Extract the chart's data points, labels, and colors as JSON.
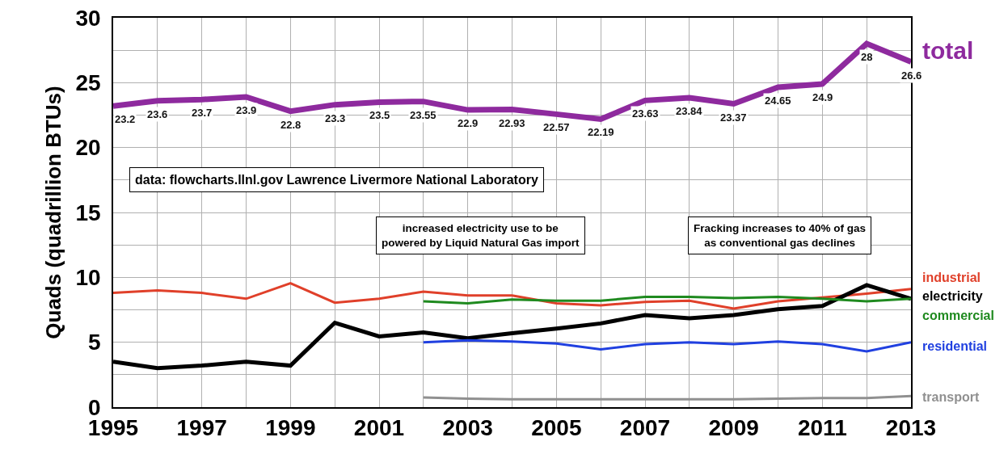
{
  "chart_data": {
    "type": "line",
    "ylabel": "Quads (quadrillion BTUs)",
    "x": [
      1995,
      1996,
      1997,
      1998,
      1999,
      2000,
      2001,
      2002,
      2003,
      2004,
      2005,
      2006,
      2007,
      2008,
      2009,
      2010,
      2011,
      2012,
      2013
    ],
    "series": [
      {
        "name": "total",
        "color": "#8e2a9e",
        "values": [
          23.2,
          23.6,
          23.7,
          23.9,
          22.8,
          23.3,
          23.5,
          23.55,
          22.9,
          22.93,
          22.57,
          22.19,
          23.63,
          23.84,
          23.37,
          24.65,
          24.9,
          28,
          26.6
        ],
        "value_labels": [
          "23.2",
          "23.6",
          "23.7",
          "23.9",
          "22.8",
          "23.3",
          "23.5",
          "23.55",
          "22.9",
          "22.93",
          "22.57",
          "22.19",
          "23.63",
          "23.84",
          "23.37",
          "24.65",
          "24.9",
          "28",
          "26.6"
        ]
      },
      {
        "name": "industrial",
        "color": "#e0402a",
        "values": [
          8.8,
          9.0,
          8.8,
          8.35,
          9.55,
          8.05,
          8.35,
          8.9,
          8.6,
          8.6,
          8.0,
          7.85,
          8.1,
          8.2,
          7.6,
          8.15,
          8.45,
          8.75,
          9.1
        ]
      },
      {
        "name": "electricity",
        "color": "#000000",
        "values": [
          3.5,
          3.0,
          3.2,
          3.5,
          3.2,
          6.5,
          5.45,
          5.75,
          5.3,
          5.7,
          6.05,
          6.45,
          7.1,
          6.85,
          7.1,
          7.55,
          7.8,
          9.4,
          8.35
        ]
      },
      {
        "name": "commercial",
        "color": "#1f8a1f",
        "values": [
          null,
          null,
          null,
          null,
          null,
          null,
          null,
          8.15,
          8.0,
          8.3,
          8.2,
          8.2,
          8.5,
          8.5,
          8.4,
          8.5,
          8.35,
          8.15,
          8.35
        ]
      },
      {
        "name": "residential",
        "color": "#2040e0",
        "values": [
          null,
          null,
          null,
          null,
          null,
          null,
          null,
          5.0,
          5.15,
          5.05,
          4.9,
          4.45,
          4.85,
          5.0,
          4.85,
          5.05,
          4.85,
          4.3,
          5.0
        ]
      },
      {
        "name": "transport",
        "color": "#909090",
        "values": [
          null,
          null,
          null,
          null,
          null,
          null,
          null,
          0.75,
          0.65,
          0.6,
          0.6,
          0.6,
          0.6,
          0.6,
          0.6,
          0.65,
          0.7,
          0.7,
          0.85
        ]
      }
    ],
    "annotations": [
      "data: flowcharts.llnl.gov Lawrence Livermore National Laboratory",
      "increased electricity use to be\npowered by Liquid Natural Gas import",
      "Fracking increases to 40% of gas\nas conventional gas declines"
    ],
    "xlim": [
      1995,
      2013
    ],
    "xticks": [
      1995,
      {
        "value": 1996,
        "label": null
      },
      1997,
      {
        "value": 1998,
        "label": null
      },
      1999,
      {
        "value": 2000,
        "label": null
      },
      2001,
      {
        "value": 2002,
        "label": null
      },
      2003,
      {
        "value": 2004,
        "label": null
      },
      2005,
      {
        "value": 2006,
        "label": null
      },
      2007,
      {
        "value": 2008,
        "label": null
      },
      2009,
      {
        "value": 2010,
        "label": null
      },
      2011,
      {
        "value": 2012,
        "label": null
      },
      2013
    ],
    "ylim": [
      0,
      30
    ],
    "yticks": [
      0,
      {
        "value": 2.5,
        "label": null
      },
      5,
      {
        "value": 7.5,
        "label": null
      },
      10,
      {
        "value": 12.5,
        "label": null
      },
      15,
      {
        "value": 17.5,
        "label": null
      },
      20,
      {
        "value": 22.5,
        "label": null
      },
      25,
      {
        "value": 27.5,
        "label": null
      },
      30
    ],
    "grid": true,
    "legend": false,
    "marker": "none",
    "line_style": "solid"
  }
}
